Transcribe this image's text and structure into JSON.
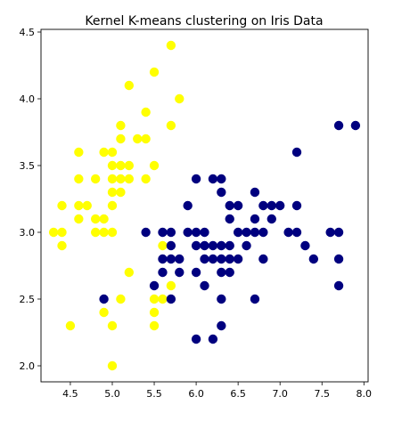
{
  "chart_data": {
    "type": "scatter",
    "title": "Kernel K-means clustering on Iris Data",
    "xlabel": "",
    "ylabel": "",
    "xlim": [
      4.15,
      8.05
    ],
    "ylim": [
      1.88,
      4.52
    ],
    "xticks": [
      "4.5",
      "5.0",
      "5.5",
      "6.0",
      "6.5",
      "7.0",
      "7.5",
      "8.0"
    ],
    "yticks": [
      "2.0",
      "2.5",
      "3.0",
      "3.5",
      "4.0",
      "4.5"
    ],
    "grid": false,
    "legend": "none",
    "colors": {
      "cluster_yellow": "#ffff00",
      "cluster_navy": "#00007f",
      "axes": "#000000",
      "background": "#ffffff"
    },
    "series": [
      {
        "color_key": "cluster_yellow",
        "points": [
          [
            4.3,
            3.0
          ],
          [
            4.4,
            2.9
          ],
          [
            4.4,
            3.0
          ],
          [
            4.4,
            3.2
          ],
          [
            4.5,
            2.3
          ],
          [
            4.6,
            3.1
          ],
          [
            4.6,
            3.2
          ],
          [
            4.6,
            3.4
          ],
          [
            4.6,
            3.6
          ],
          [
            4.7,
            3.2
          ],
          [
            4.8,
            3.0
          ],
          [
            4.8,
            3.1
          ],
          [
            4.8,
            3.4
          ],
          [
            4.9,
            2.4
          ],
          [
            4.9,
            3.0
          ],
          [
            4.9,
            3.1
          ],
          [
            4.9,
            3.6
          ],
          [
            5.0,
            2.0
          ],
          [
            5.0,
            2.3
          ],
          [
            5.0,
            3.0
          ],
          [
            5.0,
            3.2
          ],
          [
            5.0,
            3.3
          ],
          [
            5.0,
            3.4
          ],
          [
            5.0,
            3.5
          ],
          [
            5.0,
            3.6
          ],
          [
            5.1,
            2.5
          ],
          [
            5.1,
            3.3
          ],
          [
            5.1,
            3.4
          ],
          [
            5.1,
            3.5
          ],
          [
            5.1,
            3.7
          ],
          [
            5.1,
            3.8
          ],
          [
            5.2,
            2.7
          ],
          [
            5.2,
            3.4
          ],
          [
            5.2,
            3.5
          ],
          [
            5.2,
            4.1
          ],
          [
            5.3,
            3.7
          ],
          [
            5.4,
            3.4
          ],
          [
            5.4,
            3.7
          ],
          [
            5.4,
            3.9
          ],
          [
            5.5,
            2.3
          ],
          [
            5.5,
            2.4
          ],
          [
            5.5,
            2.5
          ],
          [
            5.5,
            3.5
          ],
          [
            5.5,
            4.2
          ],
          [
            5.6,
            2.5
          ],
          [
            5.6,
            2.9
          ],
          [
            5.7,
            2.6
          ],
          [
            5.7,
            3.8
          ],
          [
            5.7,
            4.4
          ],
          [
            5.8,
            4.0
          ]
        ]
      },
      {
        "color_key": "cluster_navy",
        "points": [
          [
            4.9,
            2.5
          ],
          [
            5.4,
            3.0
          ],
          [
            5.5,
            2.6
          ],
          [
            5.6,
            2.7
          ],
          [
            5.6,
            2.8
          ],
          [
            5.6,
            3.0
          ],
          [
            5.7,
            2.5
          ],
          [
            5.7,
            2.8
          ],
          [
            5.7,
            2.9
          ],
          [
            5.7,
            3.0
          ],
          [
            5.8,
            2.7
          ],
          [
            5.8,
            2.8
          ],
          [
            5.9,
            3.2
          ],
          [
            5.9,
            3.0
          ],
          [
            6.0,
            2.2
          ],
          [
            6.0,
            2.7
          ],
          [
            6.0,
            2.9
          ],
          [
            6.0,
            3.0
          ],
          [
            6.0,
            3.4
          ],
          [
            6.1,
            2.6
          ],
          [
            6.1,
            2.8
          ],
          [
            6.1,
            2.9
          ],
          [
            6.1,
            3.0
          ],
          [
            6.2,
            2.2
          ],
          [
            6.2,
            2.8
          ],
          [
            6.2,
            2.9
          ],
          [
            6.2,
            3.4
          ],
          [
            6.3,
            2.3
          ],
          [
            6.3,
            2.5
          ],
          [
            6.3,
            2.7
          ],
          [
            6.3,
            2.8
          ],
          [
            6.3,
            2.9
          ],
          [
            6.3,
            3.3
          ],
          [
            6.3,
            3.4
          ],
          [
            6.4,
            2.7
          ],
          [
            6.4,
            2.8
          ],
          [
            6.4,
            2.9
          ],
          [
            6.4,
            3.1
          ],
          [
            6.4,
            3.2
          ],
          [
            6.5,
            2.8
          ],
          [
            6.5,
            3.0
          ],
          [
            6.5,
            3.2
          ],
          [
            6.6,
            2.9
          ],
          [
            6.6,
            3.0
          ],
          [
            6.7,
            2.5
          ],
          [
            6.7,
            3.0
          ],
          [
            6.7,
            3.1
          ],
          [
            6.7,
            3.3
          ],
          [
            6.8,
            2.8
          ],
          [
            6.8,
            3.0
          ],
          [
            6.8,
            3.2
          ],
          [
            6.9,
            3.1
          ],
          [
            6.9,
            3.2
          ],
          [
            7.0,
            3.2
          ],
          [
            7.1,
            3.0
          ],
          [
            7.2,
            3.0
          ],
          [
            7.2,
            3.2
          ],
          [
            7.2,
            3.6
          ],
          [
            7.3,
            2.9
          ],
          [
            7.4,
            2.8
          ],
          [
            7.6,
            3.0
          ],
          [
            7.7,
            2.6
          ],
          [
            7.7,
            2.8
          ],
          [
            7.7,
            3.0
          ],
          [
            7.7,
            3.8
          ],
          [
            7.9,
            3.8
          ]
        ]
      }
    ]
  }
}
